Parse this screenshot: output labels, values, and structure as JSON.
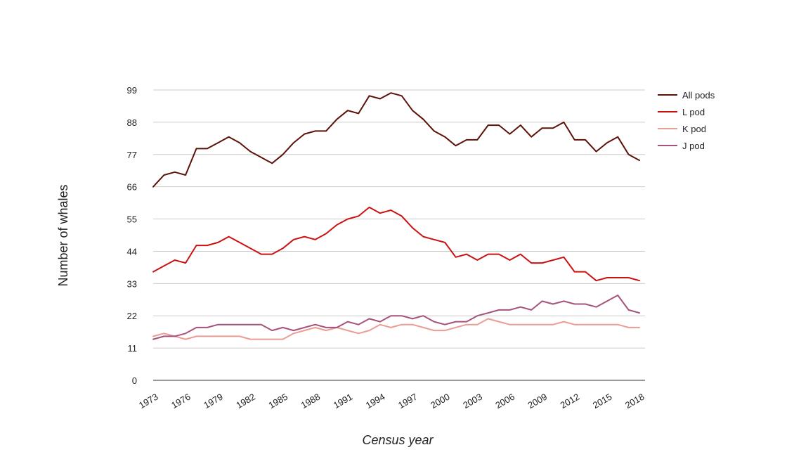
{
  "chart_data": {
    "type": "line",
    "title": "",
    "xlabel": "Census year",
    "ylabel": "Number of whales",
    "x": [
      1973,
      1974,
      1975,
      1976,
      1977,
      1978,
      1979,
      1980,
      1981,
      1982,
      1983,
      1984,
      1985,
      1986,
      1987,
      1988,
      1989,
      1990,
      1991,
      1992,
      1993,
      1994,
      1995,
      1996,
      1997,
      1998,
      1999,
      2000,
      2001,
      2002,
      2003,
      2004,
      2005,
      2006,
      2007,
      2008,
      2009,
      2010,
      2011,
      2012,
      2013,
      2014,
      2015,
      2016,
      2017,
      2018
    ],
    "x_tick_labels": [
      "1973",
      "1976",
      "1979",
      "1982",
      "1985",
      "1988",
      "1991",
      "1994",
      "1997",
      "2000",
      "2003",
      "2006",
      "2009",
      "2012",
      "2015",
      "2018"
    ],
    "y_ticks": [
      0,
      11,
      22,
      33,
      44,
      55,
      66,
      77,
      88,
      99
    ],
    "xlim": [
      1973,
      2018
    ],
    "ylim": [
      0,
      99
    ],
    "grid": true,
    "legend_position": "right",
    "series": [
      {
        "name": "All pods",
        "color": "#5c1208",
        "values": [
          66,
          70,
          71,
          70,
          79,
          79,
          81,
          83,
          81,
          78,
          76,
          74,
          77,
          81,
          84,
          85,
          85,
          89,
          92,
          91,
          97,
          96,
          98,
          97,
          92,
          89,
          85,
          83,
          80,
          82,
          82,
          87,
          87,
          84,
          87,
          83,
          86,
          86,
          88,
          82,
          82,
          78,
          81,
          83,
          77,
          75
        ]
      },
      {
        "name": "L pod",
        "color": "#cc1111",
        "values": [
          37,
          39,
          41,
          40,
          46,
          46,
          47,
          49,
          47,
          45,
          43,
          43,
          45,
          48,
          49,
          48,
          50,
          53,
          55,
          56,
          59,
          57,
          58,
          56,
          52,
          49,
          48,
          47,
          42,
          43,
          41,
          43,
          43,
          41,
          43,
          40,
          40,
          41,
          42,
          37,
          37,
          34,
          35,
          35,
          35,
          34
        ]
      },
      {
        "name": "K pod",
        "color": "#eb9c94",
        "values": [
          15,
          16,
          15,
          14,
          15,
          15,
          15,
          15,
          15,
          14,
          14,
          14,
          14,
          16,
          17,
          18,
          17,
          18,
          17,
          16,
          17,
          19,
          18,
          19,
          19,
          18,
          17,
          17,
          18,
          19,
          19,
          21,
          20,
          19,
          19,
          19,
          19,
          19,
          20,
          19,
          19,
          19,
          19,
          19,
          18,
          18
        ]
      },
      {
        "name": "J pod",
        "color": "#a6537c",
        "values": [
          14,
          15,
          15,
          16,
          18,
          18,
          19,
          19,
          19,
          19,
          19,
          17,
          18,
          17,
          18,
          19,
          18,
          18,
          20,
          19,
          21,
          20,
          22,
          22,
          21,
          22,
          20,
          19,
          20,
          20,
          22,
          23,
          24,
          24,
          25,
          24,
          27,
          26,
          27,
          26,
          26,
          25,
          27,
          29,
          24,
          23
        ]
      }
    ]
  }
}
